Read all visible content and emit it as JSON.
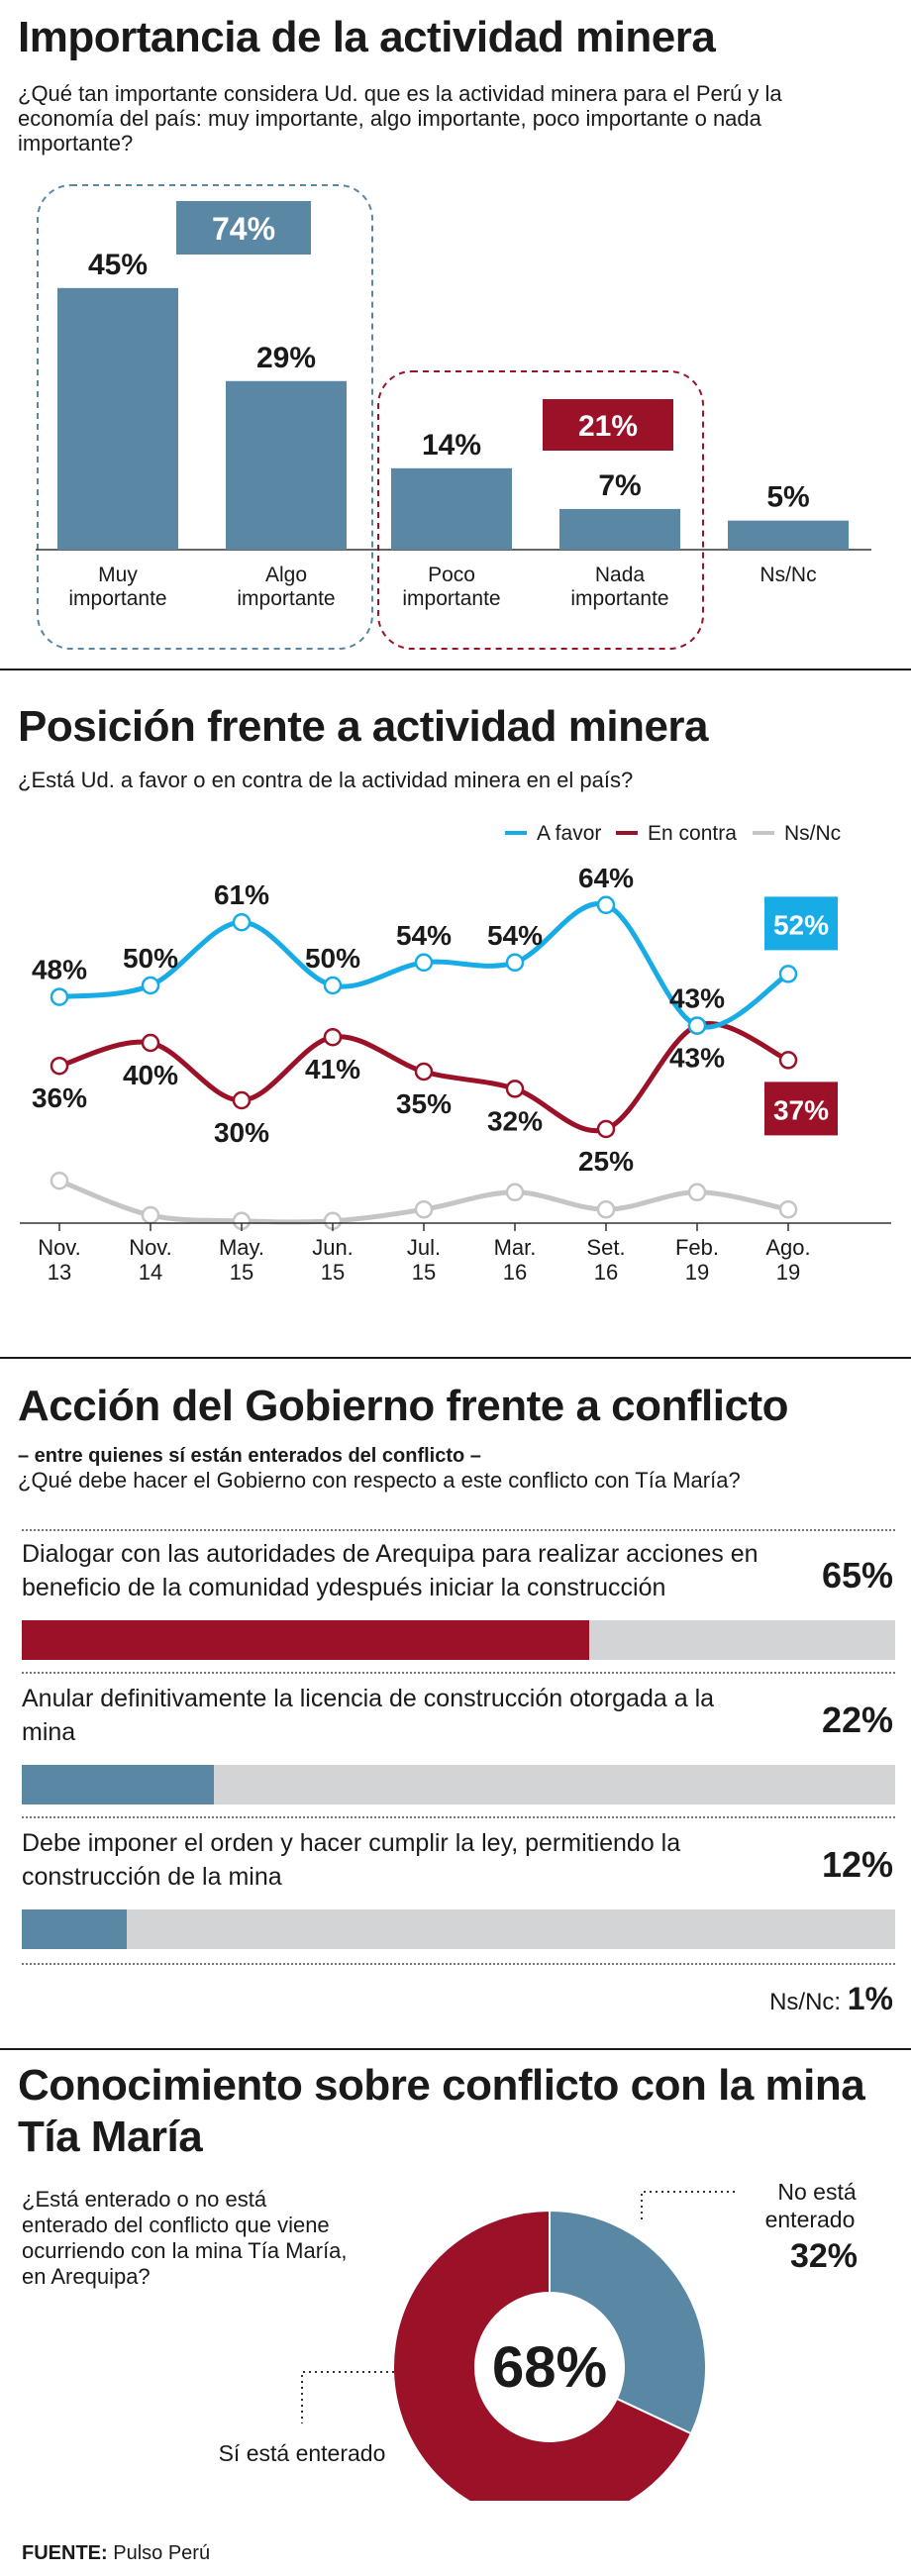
{
  "section1": {
    "title": "Importancia de la actividad minera",
    "question": "¿Qué tan importante considera Ud. que es la actividad minera para el Perú y la economía del país: muy importante, algo importante, poco importante o nada importante?",
    "group_positive": "74%",
    "group_negative": "21%"
  },
  "section2": {
    "title": "Posición frente a actividad minera",
    "question": "¿Está Ud. a favor o en contra de la actividad minera en el país?"
  },
  "section3": {
    "title": "Acción del Gobierno frente a conflicto",
    "subtitle": "– entre quienes sí están enterados del conflicto –",
    "question": "¿Qué debe hacer el Gobierno con respecto a este conflicto con Tía María?",
    "options": [
      {
        "label": "Dialogar con las autoridades de Arequipa  para realizar acciones en beneficio de la comunidad ydespués iniciar la construcción",
        "pct_label": "65%"
      },
      {
        "label": "Anular definitivamente la licencia de construcción otorgada a la mina",
        "pct_label": "22%"
      },
      {
        "label": "Debe imponer el orden y hacer cumplir la ley, permitiendo la construcción de la mina",
        "pct_label": "12%"
      }
    ],
    "nsnc_label": "Ns/Nc:",
    "nsnc_value": "1%"
  },
  "section4": {
    "title": "Conocimiento sobre conflicto con  la mina Tía María",
    "question": "¿Está enterado o no está enterado del conflicto que viene ocurriendo con la mina Tía María, en Arequipa?",
    "center_label": "68%",
    "label_yes": "Sí está enterado",
    "label_no_line1": "No está",
    "label_no_line2": "enterado",
    "label_no_value": "32%"
  },
  "source": {
    "label": "FUENTE:",
    "value": "Pulso Perú"
  },
  "colors": {
    "blue": "#5a87a4",
    "red": "#9b1228",
    "cyan": "#18ace6",
    "gray": "#c4c5c7",
    "track": "#d3d4d6"
  },
  "chart_data": [
    {
      "type": "bar",
      "categories": [
        [
          "Muy",
          "importante"
        ],
        [
          "Algo",
          "importante"
        ],
        [
          "Poco",
          "importante"
        ],
        [
          "Nada",
          "importante"
        ],
        [
          "Ns/Nc"
        ]
      ],
      "values": [
        45,
        29,
        14,
        7,
        5
      ],
      "value_labels": [
        "45%",
        "29%",
        "14%",
        "7%",
        "5%"
      ],
      "ylim": [
        0,
        50
      ]
    },
    {
      "type": "line",
      "categories": [
        [
          "Nov.",
          "13"
        ],
        [
          "Nov.",
          "14"
        ],
        [
          "May.",
          "15"
        ],
        [
          "Jun.",
          "15"
        ],
        [
          "Jul.",
          "15"
        ],
        [
          "Mar.",
          "16"
        ],
        [
          "Set.",
          "16"
        ],
        [
          "Feb.",
          "19"
        ],
        [
          "Ago.",
          "19"
        ]
      ],
      "legend_placement": "top-right",
      "series": [
        {
          "name": "A favor",
          "color": "#18ace6",
          "values": [
            48,
            50,
            61,
            50,
            54,
            54,
            64,
            43,
            52
          ],
          "labels": [
            "48%",
            "50%",
            "61%",
            "50%",
            "54%",
            "54%",
            "64%",
            "43%",
            "52%"
          ]
        },
        {
          "name": "En contra",
          "color": "#9b1228",
          "values": [
            36,
            40,
            30,
            41,
            35,
            32,
            25,
            43,
            37
          ],
          "labels": [
            "36%",
            "40%",
            "30%",
            "41%",
            "35%",
            "32%",
            "25%",
            "43%",
            "37%"
          ]
        },
        {
          "name": "Ns/Nc",
          "color": "#c4c5c7",
          "values": [
            16,
            10,
            9,
            9,
            11,
            14,
            11,
            14,
            11
          ],
          "labels": []
        }
      ],
      "ylim": [
        0,
        70
      ]
    },
    {
      "type": "bar",
      "orientation": "horizontal",
      "values": [
        65,
        22,
        12,
        1
      ],
      "max": 100
    },
    {
      "type": "pie",
      "donut": true,
      "slices": [
        {
          "name": "Sí está enterado",
          "value": 68,
          "color": "#9b1228"
        },
        {
          "name": "No está enterado",
          "value": 32,
          "color": "#5a87a4"
        }
      ]
    }
  ]
}
